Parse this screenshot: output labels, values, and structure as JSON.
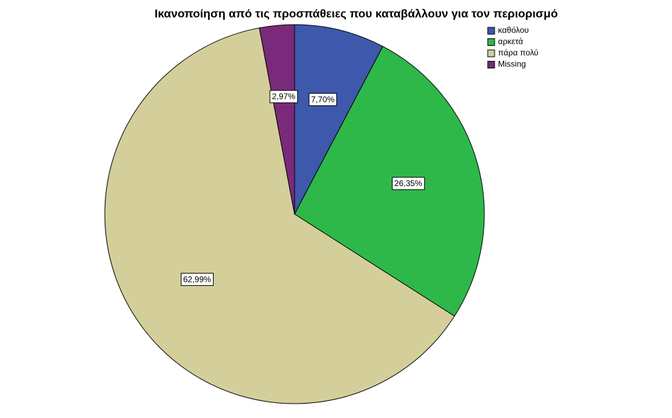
{
  "chart_data": {
    "type": "pie",
    "title": "Ικανοποίηση από τις προσπάθειες που καταβάλλουν για τον περιορισμό",
    "categories": [
      "καθόλου",
      "αρκετά",
      "πάρα πολύ",
      "Missing"
    ],
    "values": [
      7.7,
      26.35,
      62.99,
      2.97
    ],
    "value_labels": [
      "7,70%",
      "26,35%",
      "62,99%",
      "2,97%"
    ],
    "colors": [
      "#3e58ac",
      "#2fb84a",
      "#d4cf9a",
      "#7a2a7a"
    ],
    "legend": "top-right"
  }
}
